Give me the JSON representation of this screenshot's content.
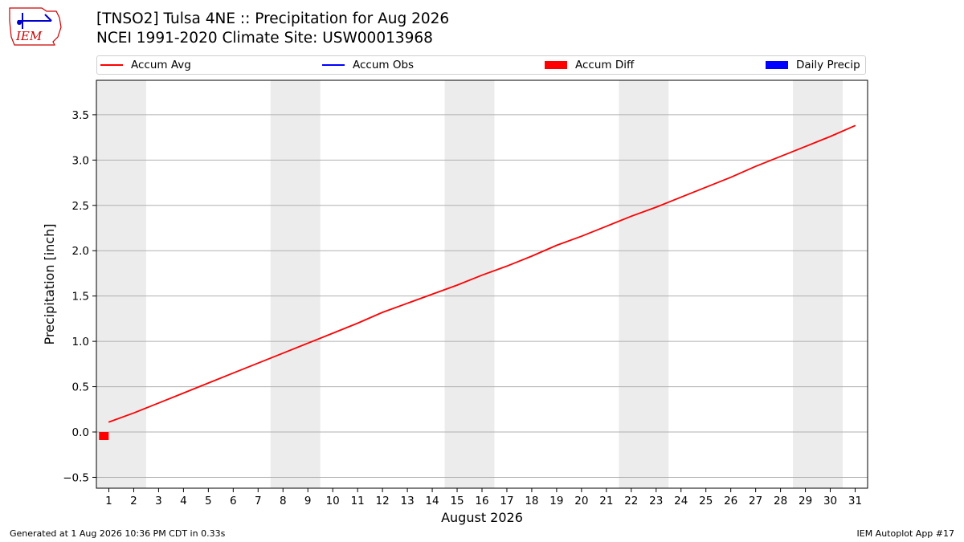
{
  "header": {
    "title_line1": "[TNSO2] Tulsa 4NE :: Precipitation for Aug 2026",
    "title_line2": "NCEI 1991-2020 Climate Site: USW00013968"
  },
  "logo": {
    "text": "IEM",
    "color": "#cc0000",
    "accent": "#0000cc"
  },
  "legend": {
    "items": [
      {
        "label": "Accum Avg",
        "kind": "line",
        "color": "#ff0000"
      },
      {
        "label": "Accum Obs",
        "kind": "line",
        "color": "#0000ff"
      },
      {
        "label": "Accum Diff",
        "kind": "box",
        "color": "#ff0000"
      },
      {
        "label": "Daily Precip",
        "kind": "box",
        "color": "#0000ff"
      }
    ]
  },
  "footer": {
    "left": "Generated at 1 Aug 2026 10:36 PM CDT in 0.33s",
    "right": "IEM Autoplot App #17"
  },
  "chart_data": {
    "type": "line",
    "title": "[TNSO2] Tulsa 4NE :: Precipitation for Aug 2026",
    "subtitle": "NCEI 1991-2020 Climate Site: USW00013968",
    "xlabel": "August 2026",
    "ylabel": "Precipitation [inch]",
    "xlim": [
      0.5,
      31.5
    ],
    "ylim": [
      -0.62,
      3.88
    ],
    "xticks": [
      1,
      2,
      3,
      4,
      5,
      6,
      7,
      8,
      9,
      10,
      11,
      12,
      13,
      14,
      15,
      16,
      17,
      18,
      19,
      20,
      21,
      22,
      23,
      24,
      25,
      26,
      27,
      28,
      29,
      30,
      31
    ],
    "yticks": [
      -0.5,
      0.0,
      0.5,
      1.0,
      1.5,
      2.0,
      2.5,
      3.0,
      3.5
    ],
    "ytick_labels": [
      "−0.5",
      "0.0",
      "0.5",
      "1.0",
      "1.5",
      "2.0",
      "2.5",
      "3.0",
      "3.5"
    ],
    "grid": "horizontal",
    "weekend_shading": [
      [
        0.5,
        2.5
      ],
      [
        7.5,
        9.5
      ],
      [
        14.5,
        16.5
      ],
      [
        21.5,
        23.5
      ],
      [
        28.5,
        30.5
      ]
    ],
    "weekend_color": "#ececec",
    "series": [
      {
        "name": "Accum Avg",
        "color": "#ff0000",
        "x": [
          1,
          2,
          3,
          4,
          5,
          6,
          7,
          8,
          9,
          10,
          11,
          12,
          13,
          14,
          15,
          16,
          17,
          18,
          19,
          20,
          21,
          22,
          23,
          24,
          25,
          26,
          27,
          28,
          29,
          30,
          31
        ],
        "values": [
          0.11,
          0.21,
          0.32,
          0.43,
          0.54,
          0.65,
          0.76,
          0.87,
          0.98,
          1.09,
          1.2,
          1.32,
          1.42,
          1.52,
          1.62,
          1.73,
          1.83,
          1.94,
          2.06,
          2.16,
          2.27,
          2.38,
          2.48,
          2.59,
          2.7,
          2.81,
          2.93,
          3.04,
          3.15,
          3.26,
          3.38
        ]
      }
    ],
    "diff_bars": [
      {
        "name": "Accum Diff",
        "color": "#ff0000",
        "x": 0.8,
        "value": -0.05
      }
    ]
  }
}
